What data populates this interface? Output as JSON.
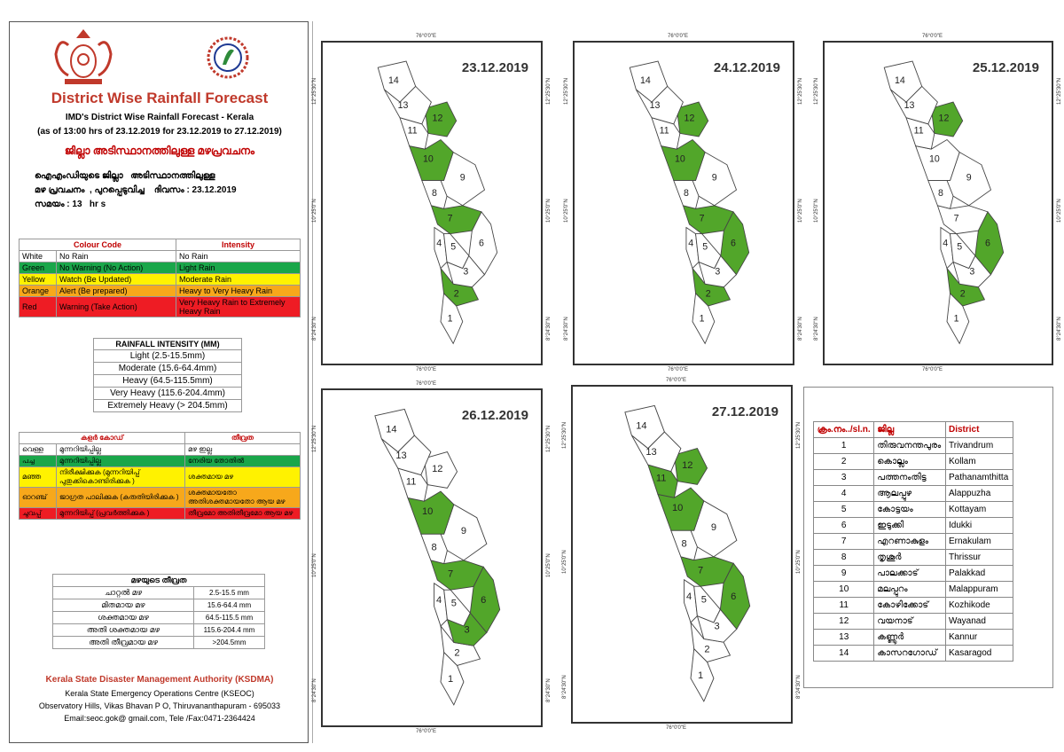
{
  "header": {
    "title": "District Wise Rainfall Forecast",
    "sub1": "IMD's District Wise Rainfall Forecast - Kerala",
    "sub2": "(as of 13:00 hrs of 23.12.2019  for 23.12.2019  to 27.12.2019)",
    "mal_title": "ജില്ലാ അടിസ്ഥാനത്തിലുള്ള  മഴപ്രവചനം",
    "mal_line1": "ഐഎംഡിയുടെ ജില്ലാ   അടിസ്ഥാനത്തിലുള്ള",
    "mal_line2": "മഴ പ്രവചനം  , പുറപ്പെടുവിച്ച    ദിവസം : 23.12.2019",
    "mal_line3": "സമയം : 13   hr s"
  },
  "colour_code": {
    "head_code": "Colour Code",
    "head_intensity": "Intensity",
    "rows": [
      {
        "name": "White",
        "code": "No Rain",
        "intensity": "No Rain",
        "color": "#ffffff"
      },
      {
        "name": "Green",
        "code": "No Warning (No Action)",
        "intensity": "Light Rain",
        "color": "#1aa64a"
      },
      {
        "name": "Yellow",
        "code": "Watch (Be Updated)",
        "intensity": "Moderate Rain",
        "color": "#fff200"
      },
      {
        "name": "Orange",
        "code": "Alert (Be prepared)",
        "intensity": "Heavy to Very Heavy Rain",
        "color": "#f7a81b"
      },
      {
        "name": "Red",
        "code": "Warning (Take Action)",
        "intensity": "Very Heavy Rain to Extremely Heavy Rain",
        "color": "#ee1c24"
      }
    ]
  },
  "rainfall_mm": {
    "title": "RAINFALL INTENSITY (MM)",
    "rows": [
      "Light (2.5-15.5mm)",
      "Moderate (15.6-64.4mm)",
      "Heavy (64.5-115.5mm)",
      "Very Heavy (115.6-204.4mm)",
      "Extremely Heavy (> 204.5mm)"
    ]
  },
  "mal_colour": {
    "head_code": "കളർ കോഡ്",
    "head_intensity": "തീവ്രത",
    "rows": [
      {
        "name": "വെള്ള",
        "code": "മുന്നറിയിപ്പില്ല",
        "intensity": "മഴ ഇല്ല",
        "color": "#ffffff"
      },
      {
        "name": "പച്ച",
        "code": "മുന്നറിയിപ്പില്ല",
        "intensity": "നേരിയ തോതിൽ",
        "color": "#1aa64a"
      },
      {
        "name": "മഞ്ഞ",
        "code": "നിരീക്ഷിക്കുക (മുന്നറിയിപ്പ് പുതുക്കികൊണ്ടിരിക്കുക )",
        "intensity": "ശക്തമായ മഴ",
        "color": "#fff200"
      },
      {
        "name": "ഓറഞ്ച്",
        "code": "ജാഗ്രത പാലിക്കുക (കരുതിയിരിക്കുക )",
        "intensity": "ശക്തമായതോ അതിശക്തമായതോ ആയ മഴ",
        "color": "#f7a81b"
      },
      {
        "name": "ചുവപ്പ്",
        "code": "മുന്നറിയിപ്പ് (പ്രവർത്തിക്കുക )",
        "intensity": "തീവ്രമോ അതിതീവ്രമോ ആയ മഴ",
        "color": "#ee1c24"
      }
    ]
  },
  "mal_intensity": {
    "title": "മഴയുടെ തീവ്രത",
    "rows": [
      {
        "label": "ചാറ്റൽ മഴ",
        "value": "2.5-15.5 mm"
      },
      {
        "label": "മിതമായ മഴ",
        "value": "15.6-64.4 mm"
      },
      {
        "label": "ശക്തമായ മഴ",
        "value": "64.5-115.5 mm"
      },
      {
        "label": "അതി ശക്തമായ മഴ",
        "value": "115.6-204.4 mm"
      },
      {
        "label": "അതി തീവ്രമായ മഴ",
        "value": ">204.5mm"
      }
    ]
  },
  "footer": {
    "org": "Kerala State Disaster Management Authority (KSDMA)",
    "line1": "Kerala State Emergency Operations Centre (KSEOC)",
    "line2": "Observatory Hills, Vikas Bhavan P O, Thiruvananthapuram - 695033",
    "line3": "Email:seoc.gok@ gmail.com, Tele /Fax:0471-2364424"
  },
  "coords": {
    "lon": "76°0'0\"E",
    "lat1": "12°25'30\"N",
    "lat2": "10°25'0\"N",
    "lat3": "8°24'30\"N"
  },
  "maps": [
    {
      "date": "23.12.2019",
      "green": [
        2,
        7,
        10,
        12
      ]
    },
    {
      "date": "24.12.2019",
      "green": [
        2,
        6,
        7,
        10,
        12
      ]
    },
    {
      "date": "25.12.2019",
      "green": [
        2,
        6,
        12
      ]
    },
    {
      "date": "26.12.2019",
      "green": [
        3,
        6,
        7,
        10
      ]
    },
    {
      "date": "27.12.2019",
      "green": [
        6,
        7,
        10,
        11,
        12
      ]
    }
  ],
  "districts": {
    "headers": [
      "ക്രം.നം../sl.n.",
      "ജില്ല",
      "District"
    ],
    "rows": [
      [
        "1",
        "തിരുവനന്തപുരം",
        "Trivandrum"
      ],
      [
        "2",
        "കൊല്ലം",
        "Kollam"
      ],
      [
        "3",
        "പത്തനംതിട്ട",
        "Pathanamthitta"
      ],
      [
        "4",
        "ആലപ്പുഴ",
        "Alappuzha"
      ],
      [
        "5",
        "കോട്ടയം",
        "Kottayam"
      ],
      [
        "6",
        "ഇടുക്കി",
        "Idukki"
      ],
      [
        "7",
        "എറണാകുളം",
        "Ernakulam"
      ],
      [
        "8",
        "തൃശൂർ",
        "Thrissur"
      ],
      [
        "9",
        "പാലക്കാട്",
        "Palakkad"
      ],
      [
        "10",
        "മലപ്പുറം",
        "Malappuram"
      ],
      [
        "11",
        "കോഴിക്കോട്",
        "Kozhikode"
      ],
      [
        "12",
        "വയനാട്",
        "Wayanad"
      ],
      [
        "13",
        "കണ്ണൂർ",
        "Kannur"
      ],
      [
        "14",
        "കാസറഗോഡ്",
        "Kasaragod"
      ]
    ]
  },
  "palette": {
    "green": "#52a62a",
    "title_red": "#c0392b"
  }
}
